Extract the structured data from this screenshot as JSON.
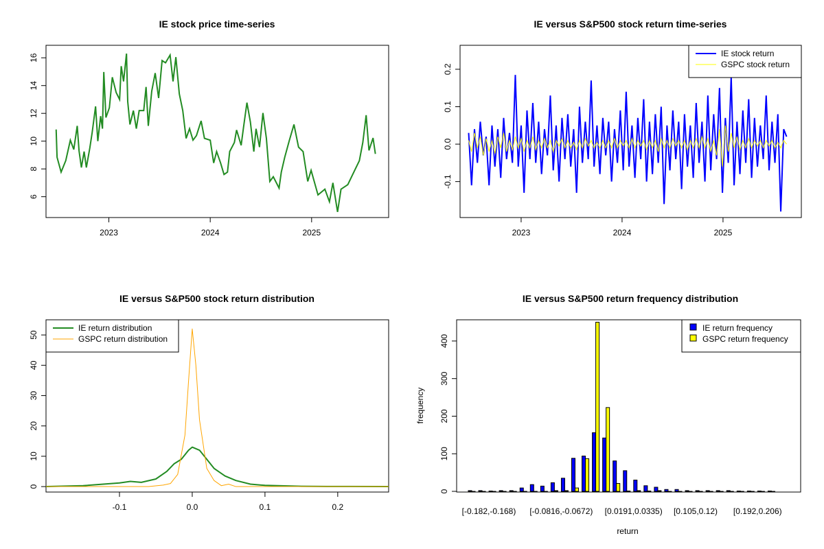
{
  "chart_data": [
    {
      "type": "line",
      "title": "IE stock price time-series",
      "xlabel": "",
      "ylabel": "",
      "xlim": [
        2022.38,
        2025.76
      ],
      "ylim": [
        4.5,
        16.9
      ],
      "x_ticks": [
        {
          "value": 2023,
          "label": "2023"
        },
        {
          "value": 2024,
          "label": "2024"
        },
        {
          "value": 2025,
          "label": "2025"
        }
      ],
      "y_ticks": [
        {
          "value": 6,
          "label": "6"
        },
        {
          "value": 8,
          "label": "8"
        },
        {
          "value": 10,
          "label": "10"
        },
        {
          "value": 12,
          "label": "12"
        },
        {
          "value": 14,
          "label": "14"
        },
        {
          "value": 16,
          "label": "16"
        }
      ],
      "color": "#228B22",
      "x": [
        2022.48,
        2022.489,
        2022.529,
        2022.575,
        2022.62,
        2022.654,
        2022.688,
        2022.706,
        2022.729,
        2022.756,
        2022.778,
        2022.812,
        2022.835,
        2022.869,
        2022.891,
        2022.919,
        2022.937,
        2022.95,
        2022.971,
        2023.005,
        2023.034,
        2023.072,
        2023.106,
        2023.122,
        2023.145,
        2023.174,
        2023.186,
        2023.208,
        2023.242,
        2023.271,
        2023.299,
        2023.344,
        2023.367,
        2023.389,
        2023.423,
        2023.457,
        2023.491,
        2023.525,
        2023.559,
        2023.604,
        2023.633,
        2023.661,
        2023.695,
        2023.729,
        2023.762,
        2023.796,
        2023.83,
        2023.864,
        2023.91,
        2023.943,
        2024.0,
        2024.034,
        2024.063,
        2024.102,
        2024.136,
        2024.17,
        2024.192,
        2024.238,
        2024.26,
        2024.305,
        2024.328,
        2024.362,
        2024.396,
        2024.43,
        2024.452,
        2024.486,
        2024.52,
        2024.554,
        2024.588,
        2024.622,
        2024.679,
        2024.701,
        2024.735,
        2024.781,
        2024.826,
        2024.871,
        2024.916,
        2024.962,
        2024.995,
        2025.063,
        2025.131,
        2025.176,
        2025.21,
        2025.256,
        2025.29,
        2025.357,
        2025.425,
        2025.471,
        2025.505,
        2025.538,
        2025.566,
        2025.606,
        2025.629
      ],
      "y": [
        10.84,
        8.84,
        7.77,
        8.6,
        10.07,
        9.4,
        11.1,
        9.3,
        8.1,
        9.25,
        8.1,
        9.5,
        10.6,
        12.5,
        10.0,
        11.8,
        10.9,
        14.98,
        11.7,
        12.4,
        14.6,
        13.5,
        13.0,
        15.4,
        14.3,
        16.3,
        12.85,
        11.2,
        12.2,
        10.9,
        12.2,
        12.2,
        13.9,
        11.1,
        13.6,
        14.9,
        13.1,
        15.8,
        15.64,
        16.2,
        14.3,
        16.05,
        13.4,
        12.2,
        10.2,
        10.9,
        10.07,
        10.4,
        11.46,
        10.2,
        10.07,
        8.43,
        9.25,
        8.43,
        7.6,
        7.77,
        9.25,
        9.9,
        10.8,
        9.7,
        10.97,
        12.77,
        11.38,
        9.25,
        10.89,
        9.57,
        12.03,
        10.2,
        7.1,
        7.44,
        6.62,
        7.77,
        8.84,
        10.07,
        11.2,
        9.57,
        9.25,
        7.1,
        7.9,
        6.13,
        6.54,
        5.64,
        7.0,
        4.9,
        6.54,
        6.87,
        7.9,
        8.59,
        9.9,
        11.87,
        9.33,
        10.23,
        9.08
      ]
    },
    {
      "type": "line",
      "title": "IE versus S&P500 stock return time-series",
      "xlabel": "",
      "ylabel": "",
      "xlim": [
        2022.395,
        2025.776
      ],
      "ylim": [
        -0.196,
        0.264
      ],
      "x_ticks": [
        {
          "value": 2023,
          "label": "2023"
        },
        {
          "value": 2024,
          "label": "2024"
        },
        {
          "value": 2025,
          "label": "2025"
        }
      ],
      "y_ticks": [
        {
          "value": -0.1,
          "label": "-0.1"
        },
        {
          "value": 0,
          "label": "0.0"
        },
        {
          "value": 0.1,
          "label": "0.1"
        },
        {
          "value": 0.2,
          "label": "0.2"
        }
      ],
      "legend": {
        "placement": "top-right",
        "entries": [
          "IE stock return",
          "GSPC stock return"
        ]
      },
      "x_range": [
        2022.48,
        2025.63
      ],
      "series": [
        {
          "name": "IE stock return",
          "color": "#0000FF",
          "values": [
            0.03,
            -0.11,
            0.04,
            -0.05,
            0.06,
            -0.03,
            0.02,
            -0.11,
            0.05,
            -0.06,
            0.04,
            -0.09,
            0.07,
            -0.04,
            0.03,
            -0.05,
            0.185,
            -0.06,
            0.05,
            -0.13,
            0.09,
            -0.04,
            0.11,
            -0.05,
            0.06,
            -0.08,
            0.04,
            -0.03,
            0.13,
            -0.07,
            0.05,
            -0.1,
            0.07,
            -0.04,
            0.08,
            -0.06,
            0.04,
            -0.13,
            0.1,
            -0.05,
            0.06,
            -0.04,
            0.17,
            -0.06,
            0.05,
            -0.08,
            0.07,
            -0.03,
            0.06,
            -0.1,
            0.04,
            -0.05,
            0.09,
            -0.07,
            0.14,
            -0.06,
            0.05,
            -0.09,
            0.07,
            -0.04,
            0.12,
            -0.1,
            0.06,
            -0.08,
            0.08,
            -0.05,
            0.1,
            -0.16,
            0.05,
            -0.07,
            0.09,
            -0.04,
            0.06,
            -0.12,
            0.08,
            -0.06,
            0.05,
            -0.09,
            0.11,
            -0.05,
            0.06,
            -0.1,
            0.13,
            -0.07,
            0.08,
            -0.04,
            0.15,
            -0.13,
            0.07,
            -0.05,
            0.18,
            -0.11,
            0.06,
            -0.08,
            0.09,
            -0.05,
            0.12,
            -0.09,
            0.07,
            -0.06,
            0.05,
            -0.04,
            0.13,
            -0.07,
            0.06,
            -0.05,
            0.08,
            -0.18,
            0.04,
            0.02
          ]
        },
        {
          "name": "GSPC stock return",
          "color": "#FFFF00",
          "values": [
            0.01,
            -0.02,
            0.03,
            -0.01,
            0.02,
            -0.03,
            0.015,
            -0.02,
            0.01,
            -0.025,
            0.02,
            -0.01,
            0.03,
            -0.02,
            0.01,
            -0.015,
            0.02,
            -0.01,
            0.015,
            -0.02,
            0.01,
            -0.01,
            0.02,
            -0.015,
            0.01,
            -0.01,
            0.015,
            -0.01,
            0.01,
            -0.02,
            0.01,
            -0.005,
            0.015,
            -0.01,
            0.01,
            -0.01,
            0.005,
            -0.015,
            0.01,
            -0.01,
            0.015,
            -0.005,
            0.01,
            -0.01,
            0.005,
            -0.01,
            0.01,
            -0.01,
            0.01,
            -0.01,
            0.015,
            -0.01,
            0.01,
            -0.005,
            0.01,
            -0.01,
            0.015,
            -0.01,
            0.01,
            -0.005,
            0.01,
            -0.015,
            0.01,
            -0.01,
            0.01,
            -0.02,
            0.015,
            -0.01,
            0.01,
            -0.01,
            0.015,
            -0.005,
            0.01,
            -0.01,
            0.01,
            -0.015,
            0.01,
            -0.01,
            0.015,
            -0.01,
            0.02,
            -0.01,
            0.015,
            -0.02,
            0.01,
            -0.03,
            0.04,
            -0.06,
            0.05,
            -0.02,
            0.03,
            -0.01,
            0.02,
            -0.015,
            0.01,
            -0.01,
            0.015,
            -0.01,
            0.01,
            -0.005,
            0.01,
            -0.01,
            0.01,
            -0.005,
            0.01,
            -0.01,
            0.005,
            -0.01,
            0.01,
            0.0
          ]
        }
      ]
    },
    {
      "type": "line",
      "title": "IE versus S&P500 stock return distribution",
      "xlabel": "",
      "ylabel": "",
      "xlim": [
        -0.201,
        0.27
      ],
      "ylim": [
        -1.8,
        55
      ],
      "x_ticks": [
        {
          "value": -0.1,
          "label": "-0.1"
        },
        {
          "value": 0,
          "label": "0.0"
        },
        {
          "value": 0.1,
          "label": "0.1"
        },
        {
          "value": 0.2,
          "label": "0.2"
        }
      ],
      "y_ticks": [
        {
          "value": 0,
          "label": "0"
        },
        {
          "value": 10,
          "label": "10"
        },
        {
          "value": 20,
          "label": "20"
        },
        {
          "value": 30,
          "label": "30"
        },
        {
          "value": 40,
          "label": "40"
        },
        {
          "value": 50,
          "label": "50"
        }
      ],
      "legend": {
        "placement": "top-left",
        "entries": [
          "IE return distribution",
          "GSPC return distribution"
        ]
      },
      "series": [
        {
          "name": "IE return distribution",
          "color": "#228B22",
          "x": [
            -0.201,
            -0.15,
            -0.1,
            -0.085,
            -0.07,
            -0.05,
            -0.035,
            -0.025,
            -0.015,
            -0.005,
            0,
            0.01,
            0.02,
            0.03,
            0.045,
            0.06,
            0.08,
            0.1,
            0.15,
            0.185,
            0.27
          ],
          "y": [
            0,
            0.3,
            1.2,
            1.7,
            1.4,
            2.5,
            5,
            7.5,
            9,
            12,
            13,
            12,
            9,
            6,
            3.5,
            2,
            0.8,
            0.4,
            0.1,
            0.05,
            0
          ]
        },
        {
          "name": "GSPC return distribution",
          "color": "#FFA500",
          "x": [
            -0.201,
            -0.06,
            -0.04,
            -0.03,
            -0.02,
            -0.01,
            -0.005,
            0,
            0.005,
            0.01,
            0.02,
            0.03,
            0.04,
            0.05,
            0.06,
            0.27
          ],
          "y": [
            0,
            0,
            0.5,
            1,
            4,
            17,
            35,
            52,
            40,
            22,
            6,
            2,
            0.3,
            0.8,
            0,
            0
          ]
        }
      ]
    },
    {
      "type": "bar",
      "title": "IE versus S&P500 return frequency distribution",
      "xlabel": "return",
      "ylabel": "frequency",
      "ylim": [
        0,
        440
      ],
      "bin_start": -0.182,
      "bin_width": 0.01437,
      "y_ticks": [
        {
          "value": 0,
          "label": "0"
        },
        {
          "value": 100,
          "label": "100"
        },
        {
          "value": 200,
          "label": "200"
        },
        {
          "value": 300,
          "label": "300"
        },
        {
          "value": 400,
          "label": "400"
        }
      ],
      "x_tick_labels": [
        {
          "bin": 0,
          "label": "[-0.182,-0.168)"
        },
        {
          "bin": 7,
          "label": "[-0.0816,-0.0672)"
        },
        {
          "bin": 14,
          "label": "[0.0191,0.0335)"
        },
        {
          "bin": 20,
          "label": "[0.105,0.12)"
        },
        {
          "bin": 26,
          "label": "[0.192,0.206)"
        }
      ],
      "legend": {
        "placement": "top-right",
        "entries": [
          "IE return frequency",
          "GSPC return frequency"
        ]
      },
      "series": [
        {
          "name": "IE return frequency",
          "color": "#0000FF",
          "values": [
            2,
            2,
            1,
            2,
            2,
            9,
            18,
            14,
            23,
            35,
            88,
            94,
            156,
            142,
            81,
            55,
            30,
            15,
            11,
            5,
            5,
            2,
            2,
            2,
            2,
            2,
            1,
            1,
            1,
            1
          ]
        },
        {
          "name": "GSPC return frequency",
          "color": "#FFFF00",
          "values": [
            0,
            0,
            0,
            0,
            0,
            0,
            0,
            0,
            2,
            2,
            9,
            87,
            455,
            223,
            21,
            1,
            2,
            1,
            2,
            0,
            0,
            0,
            0,
            0,
            0,
            0,
            0,
            0,
            0,
            0
          ]
        }
      ]
    }
  ]
}
